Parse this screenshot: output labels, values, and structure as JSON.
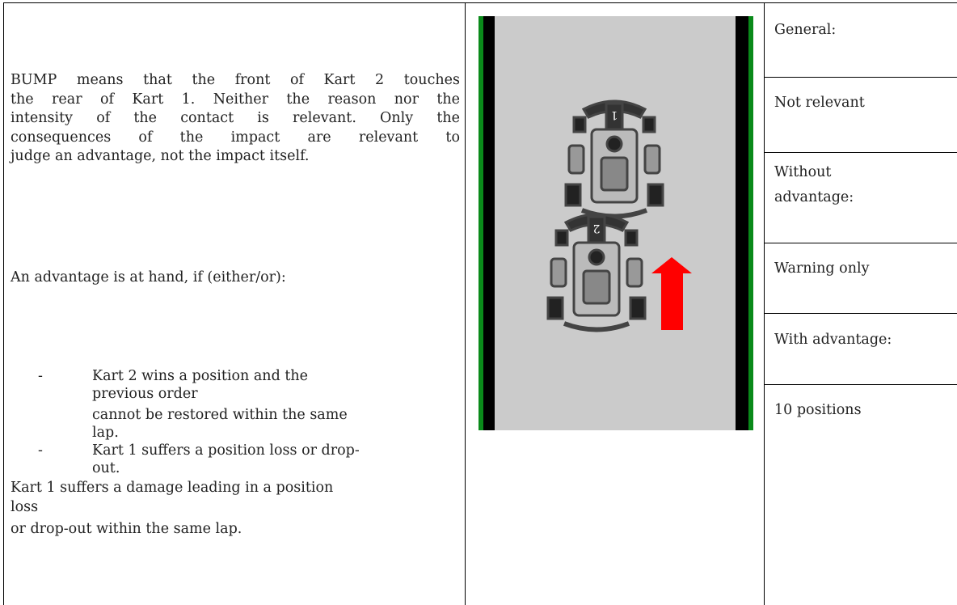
{
  "left": {
    "paragraph_1": [
      "BUMP means that the front of Kart 2 touches",
      "the rear of Kart 1. Neither the reason nor the",
      "intensity of the contact is relevant. Only the",
      "consequences of the impact are relevant to",
      "judge an advantage, not the impact itself."
    ],
    "paragraph_2": "An advantage is at hand, if (either/or):",
    "list": [
      [
        "Kart 2 wins a position and the",
        "previous order",
        "cannot be restored within the same",
        "lap."
      ],
      [
        "Kart 1 suffers a position loss or drop-",
        "out."
      ]
    ],
    "paragraph_3": [
      "Kart 1 suffers a damage leading in a position",
      "loss",
      "or drop-out within the same lap."
    ]
  },
  "illustration": {
    "kart_labels": [
      "1",
      "2"
    ]
  },
  "right": {
    "rows": [
      [
        "General:"
      ],
      [
        "Not relevant"
      ],
      [
        "Without",
        "advantage:"
      ],
      [
        "Warning only"
      ],
      [
        "With advantage:"
      ],
      [
        "10 positions"
      ]
    ]
  }
}
